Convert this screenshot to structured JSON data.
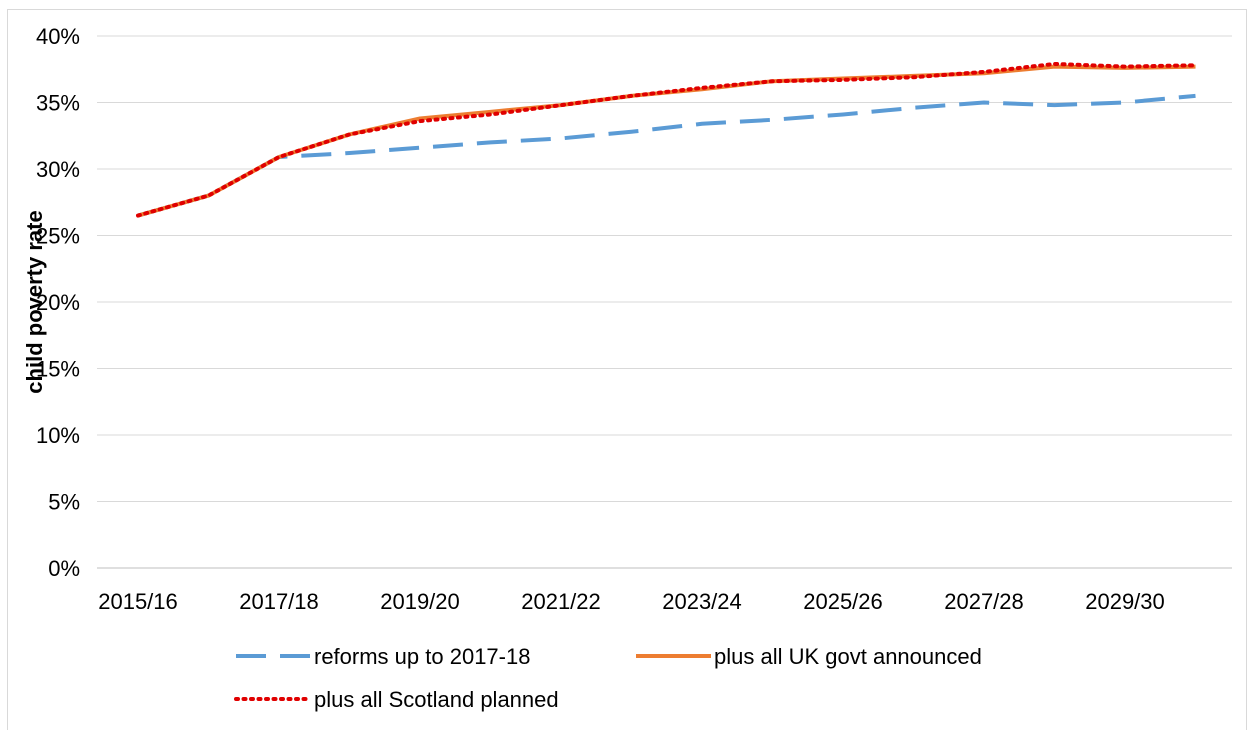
{
  "chart_data": {
    "type": "line",
    "ylabel": "child poverty rate",
    "xlabel": "",
    "ylim": [
      0,
      40
    ],
    "yticks": [
      "0%",
      "5%",
      "10%",
      "15%",
      "20%",
      "25%",
      "30%",
      "35%",
      "40%"
    ],
    "ytick_values": [
      0,
      5,
      10,
      15,
      20,
      25,
      30,
      35,
      40
    ],
    "x": [
      "2015/16",
      "2016/17",
      "2017/18",
      "2018/19",
      "2019/20",
      "2020/21",
      "2021/22",
      "2022/23",
      "2023/24",
      "2024/25",
      "2025/26",
      "2026/27",
      "2027/28",
      "2028/29",
      "2029/30",
      "2030/31"
    ],
    "xtick_labels": [
      "2015/16",
      "2017/18",
      "2019/20",
      "2021/22",
      "2023/24",
      "2025/26",
      "2027/28",
      "2029/30"
    ],
    "grid": true,
    "legend_position": "bottom",
    "series": [
      {
        "name": "reforms up to 2017-18",
        "color": "#5b9bd5",
        "style": "dashed",
        "values": [
          26.5,
          28.0,
          30.9,
          31.2,
          31.6,
          32.0,
          32.3,
          32.8,
          33.4,
          33.7,
          34.1,
          34.6,
          35.0,
          34.8,
          35.0,
          35.5
        ]
      },
      {
        "name": "plus all UK govt announced",
        "color": "#ed7d31",
        "style": "solid",
        "values": [
          26.5,
          28.0,
          30.9,
          32.6,
          33.8,
          34.3,
          34.8,
          35.5,
          36.0,
          36.6,
          36.8,
          37.0,
          37.2,
          37.7,
          37.6,
          37.7
        ]
      },
      {
        "name": "plus all Scotland planned",
        "color": "#e00000",
        "style": "dotted",
        "values": [
          26.5,
          28.0,
          30.9,
          32.6,
          33.6,
          34.1,
          34.8,
          35.5,
          36.1,
          36.6,
          36.7,
          36.9,
          37.3,
          37.9,
          37.7,
          37.8
        ]
      }
    ]
  }
}
